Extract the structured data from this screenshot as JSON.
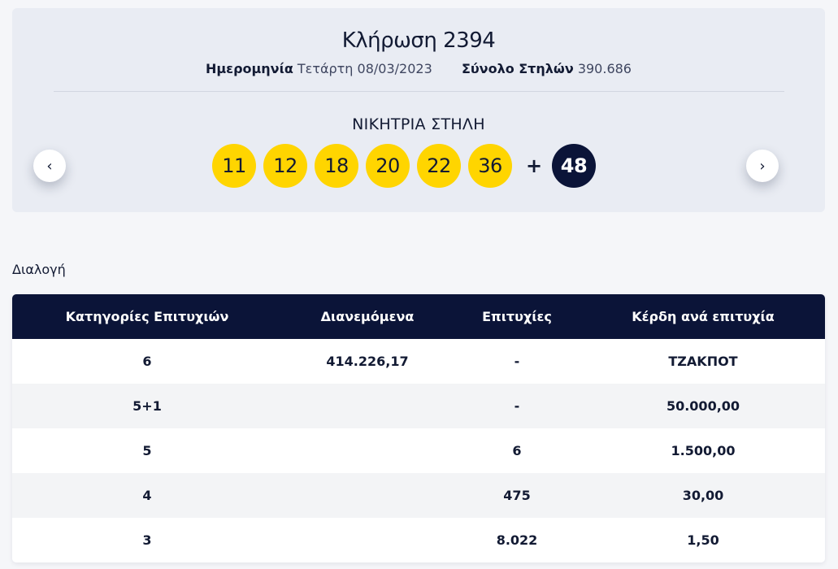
{
  "draw": {
    "title": "Κλήρωση 2394",
    "date_label": "Ημερομηνία",
    "date_value": "Τετάρτη 08/03/2023",
    "columns_label": "Σύνολο Στηλών",
    "columns_value": "390.686",
    "winning_label": "ΝΙΚΗΤΡΙΑ ΣΤΗΛΗ",
    "numbers": [
      "11",
      "12",
      "18",
      "20",
      "22",
      "36"
    ],
    "plus": "+",
    "bonus": "48",
    "prev_icon": "chevron-left-icon",
    "next_icon": "chevron-right-icon",
    "prev_glyph": "‹",
    "next_glyph": "›"
  },
  "colors": {
    "ball": "#ffd500",
    "bonus_ball": "#0b1438",
    "table_header": "#0b1438"
  },
  "section_label": "Διαλογή",
  "table": {
    "headers": [
      "Κατηγορίες Επιτυχιών",
      "Διανεμόμενα",
      "Επιτυχίες",
      "Κέρδη ανά επιτυχία"
    ],
    "rows": [
      [
        "6",
        "414.226,17",
        "-",
        "ΤΖΑΚΠΟΤ"
      ],
      [
        "5+1",
        "",
        "-",
        "50.000,00"
      ],
      [
        "5",
        "",
        "6",
        "1.500,00"
      ],
      [
        "4",
        "",
        "475",
        "30,00"
      ],
      [
        "3",
        "",
        "8.022",
        "1,50"
      ]
    ]
  }
}
